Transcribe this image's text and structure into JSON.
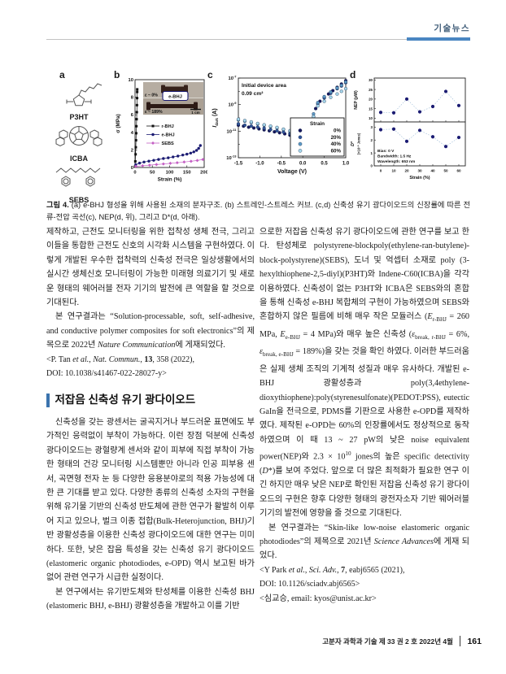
{
  "header": {
    "section_label": "기술뉴스"
  },
  "figure": {
    "panel_a": {
      "label": "a",
      "molecules": [
        "P3HT",
        "ICBA",
        "SEBS"
      ]
    },
    "caption_label": "그림 4.",
    "caption_text": "(a) e-BHJ 형성을 위해 사용된 소재의 분자구조. (b) 스트레인-스트레스 커브. (c,d) 신축성 유기 광다이오드의 신장률에 따른 전류-전압 곡선(c), NEP(d, 위), 그리고 D*(d, 아래)."
  },
  "chart_data": [
    {
      "id": "panel_b",
      "panel_label": "b",
      "type": "line",
      "xlabel": "Strain (%)",
      "ylabel": "σ (MPa)",
      "xlim": [
        0,
        200
      ],
      "ylim": [
        0,
        10
      ],
      "xticks": [
        0,
        50,
        100,
        150,
        200
      ],
      "yticks": [
        0,
        2,
        4,
        6,
        8,
        10
      ],
      "series": [
        {
          "name": "r-BHJ",
          "color": "#111111",
          "marker": "square",
          "points": [
            [
              0,
              0.1
            ],
            [
              0.8,
              0.7
            ],
            [
              1.6,
              1.5
            ],
            [
              2.2,
              2.3
            ],
            [
              2.8,
              3.1
            ],
            [
              3.4,
              3.9
            ],
            [
              4,
              4.7
            ],
            [
              4.6,
              5.5
            ],
            [
              5.2,
              6.3
            ],
            [
              5.6,
              7.1
            ],
            [
              6,
              7.9
            ],
            [
              6.2,
              8.6
            ],
            [
              6.3,
              8.9
            ]
          ]
        },
        {
          "name": "e-BHJ",
          "color": "#1b1b72",
          "marker": "circle",
          "points": [
            [
              2,
              0.32
            ],
            [
              13,
              0.5
            ],
            [
              26,
              0.62
            ],
            [
              40,
              0.72
            ],
            [
              54,
              0.82
            ],
            [
              68,
              0.92
            ],
            [
              82,
              1.02
            ],
            [
              96,
              1.1
            ],
            [
              110,
              1.2
            ],
            [
              124,
              1.3
            ],
            [
              138,
              1.42
            ],
            [
              150,
              1.52
            ],
            [
              161,
              1.64
            ],
            [
              170,
              1.78
            ],
            [
              178,
              1.95
            ],
            [
              184,
              2.18
            ],
            [
              189,
              2.5
            ]
          ]
        },
        {
          "name": "SEBS",
          "color": "#c45fc4",
          "marker": "diamond",
          "points": [
            [
              2,
              0.13
            ],
            [
              22,
              0.2
            ],
            [
              42,
              0.27
            ],
            [
              62,
              0.33
            ],
            [
              82,
              0.4
            ],
            [
              102,
              0.47
            ],
            [
              122,
              0.54
            ],
            [
              142,
              0.62
            ],
            [
              162,
              0.71
            ],
            [
              180,
              0.8
            ],
            [
              196,
              0.92
            ]
          ]
        }
      ],
      "inset": {
        "labels": [
          "ε ~ 0%",
          "ε ~ 189%"
        ],
        "badge": "e-BHJ",
        "scalebar": "1 cm"
      }
    },
    {
      "id": "panel_c",
      "panel_label": "c",
      "type": "scatter",
      "xlabel": "Voltage (V)",
      "ylabel_parts": [
        "I",
        "dark",
        " (A)"
      ],
      "xlim": [
        -1.5,
        1.0
      ],
      "ylim_log": [
        -13,
        -7
      ],
      "xticks": [
        "-1.5",
        "-1.0",
        "-0.5",
        "0.0",
        "0.5",
        "1.0"
      ],
      "ytick_exponents": [
        -7,
        -9,
        -11,
        -13
      ],
      "annotation": [
        "Initial device area",
        "0.09 cm²"
      ],
      "legend_title": "Strain",
      "series": [
        {
          "name": "0%",
          "color": "#16165e",
          "points": [
            [
              -1.5,
              -10.55
            ],
            [
              -1.38,
              -10.62
            ],
            [
              -1.26,
              -10.7
            ],
            [
              -1.14,
              -10.76
            ],
            [
              -1.02,
              -10.83
            ],
            [
              -0.9,
              -10.9
            ],
            [
              -0.78,
              -10.97
            ],
            [
              -0.66,
              -11.05
            ],
            [
              -0.54,
              -11.12
            ],
            [
              -0.42,
              -11.2
            ],
            [
              -0.3,
              -11.3
            ],
            [
              -0.18,
              -11.42
            ],
            [
              -0.06,
              -11.55
            ],
            [
              0.03,
              -12.1
            ],
            [
              0.07,
              -12.5
            ],
            [
              0.15,
              -11.4
            ],
            [
              0.22,
              -10.3
            ],
            [
              0.3,
              -9.3
            ],
            [
              0.4,
              -8.75
            ],
            [
              0.5,
              -8.45
            ],
            [
              0.6,
              -8.2
            ],
            [
              0.7,
              -7.95
            ],
            [
              0.8,
              -7.7
            ],
            [
              0.9,
              -7.45
            ],
            [
              1.0,
              -7.2
            ]
          ]
        },
        {
          "name": "20%",
          "color": "#30549a",
          "points": [
            [
              -1.5,
              -10.45
            ],
            [
              -1.35,
              -10.55
            ],
            [
              -1.2,
              -10.62
            ],
            [
              -1.05,
              -10.7
            ],
            [
              -0.9,
              -10.78
            ],
            [
              -0.75,
              -10.88
            ],
            [
              -0.6,
              -10.97
            ],
            [
              -0.45,
              -11.07
            ],
            [
              -0.3,
              -11.18
            ],
            [
              -0.15,
              -11.32
            ],
            [
              -0.03,
              -11.5
            ],
            [
              0.05,
              -12.2
            ],
            [
              0.15,
              -11.1
            ],
            [
              0.25,
              -9.9
            ],
            [
              0.35,
              -8.95
            ],
            [
              0.5,
              -8.5
            ],
            [
              0.65,
              -8.15
            ],
            [
              0.8,
              -7.8
            ],
            [
              0.9,
              -7.6
            ],
            [
              1.0,
              -7.35
            ]
          ]
        },
        {
          "name": "40%",
          "color": "#5d9bc8",
          "points": [
            [
              -1.5,
              -10.15
            ],
            [
              -1.35,
              -10.25
            ],
            [
              -1.2,
              -10.35
            ],
            [
              -1.05,
              -10.45
            ],
            [
              -0.9,
              -10.55
            ],
            [
              -0.75,
              -10.65
            ],
            [
              -0.6,
              -10.75
            ],
            [
              -0.45,
              -10.87
            ],
            [
              -0.3,
              -11.0
            ],
            [
              -0.15,
              -11.15
            ],
            [
              -0.03,
              -11.35
            ],
            [
              0.05,
              -11.9
            ],
            [
              0.15,
              -10.9
            ],
            [
              0.25,
              -9.7
            ],
            [
              0.35,
              -8.85
            ],
            [
              0.5,
              -8.4
            ],
            [
              0.65,
              -8.05
            ],
            [
              0.8,
              -7.75
            ],
            [
              0.9,
              -7.55
            ],
            [
              1.0,
              -7.3
            ]
          ]
        },
        {
          "name": "60%",
          "color": "#a6d7ec",
          "points": [
            [
              -1.5,
              -10.1
            ],
            [
              -1.35,
              -10.2
            ],
            [
              -1.2,
              -10.3
            ],
            [
              -1.05,
              -10.42
            ],
            [
              -0.9,
              -10.52
            ],
            [
              -0.75,
              -10.62
            ],
            [
              -0.6,
              -10.72
            ],
            [
              -0.45,
              -10.85
            ],
            [
              -0.3,
              -10.97
            ],
            [
              -0.15,
              -11.1
            ],
            [
              -0.03,
              -11.3
            ],
            [
              0.05,
              -11.75
            ],
            [
              0.15,
              -10.8
            ],
            [
              0.25,
              -9.9
            ],
            [
              0.35,
              -9.1
            ],
            [
              0.5,
              -8.75
            ],
            [
              0.65,
              -8.45
            ],
            [
              0.8,
              -8.2
            ],
            [
              0.9,
              -8.0
            ],
            [
              1.0,
              -7.8
            ]
          ]
        }
      ]
    },
    {
      "id": "panel_d",
      "panel_label": "d",
      "type": "scatter",
      "xlabel": "Strain (%)",
      "x": [
        0,
        10,
        20,
        30,
        40,
        50,
        60
      ],
      "xticks": [
        0,
        10,
        20,
        30,
        40,
        50,
        60
      ],
      "marker_color": "#1b1b72",
      "line_color": "#9dbcd8",
      "subplots": [
        {
          "ylabel": "NEP (pW)",
          "ylim": [
            8,
            31
          ],
          "yticks": [
            10,
            15,
            20,
            25,
            30
          ],
          "values": [
            13,
            12.8,
            20,
            13.3,
            16.1,
            24,
            16.6
          ]
        },
        {
          "ylabel_lines": [
            "D*",
            "(×10¹⁰ Jones)"
          ],
          "ylim": [
            0,
            3.4
          ],
          "yticks": [
            0,
            1,
            2,
            3
          ],
          "values": [
            2.8,
            2.85,
            1.9,
            2.75,
            2.25,
            1.5,
            2.2
          ]
        }
      ],
      "annotation": [
        "Bias: 0 V",
        "Bandwidth: 1.5 Hz",
        "Wavelength: 653 nm"
      ]
    }
  ],
  "article": {
    "section_heading": "저잡음 신축성 유기 광다이오드",
    "left": {
      "p1": [
        {
          "t": "제작하고, 근전도 모니터링을 위한 접착성 생체 전극, 그리고 이들을 통합한 근전도 신호의 시각화 시스템을 구현하였다. 이렇게 개발된 우수한 접착력의 신축성 전극은 일상생활에서의 실시간 생체신호 모니터링이 가능한 미래형 의료기기 및 새로운 형태의 웨어러블 전자 기기의 발전에 큰 역할을 할 것으로 기대된다."
        }
      ],
      "p2": [
        {
          "t": "본 연구결과는 “Solution-processable, soft, self-adhesive, and conductive polymer composites for soft electronics”의 제목으로 2022년 "
        },
        {
          "t": "Nature Communication",
          "i": true
        },
        {
          "t": "에 게재되었다."
        }
      ],
      "citation": [
        {
          "t": "<P. Tan "
        },
        {
          "t": "et al.",
          "i": true
        },
        {
          "t": ", "
        },
        {
          "t": "Nat. Commun.",
          "i": true
        },
        {
          "t": ", "
        },
        {
          "t": "13",
          "b": true
        },
        {
          "t": ", 358 (2022),\nDOI: 10.1038/s41467-022-28027-y>"
        }
      ],
      "p3": [
        {
          "t": "신축성을 갖는 광센서는 굴곡지거나 부드러운 표면에도 부가적인 응력없이 부착이 가능하다. 이런 장점 덕분에 신축성 광다이오드는 광혈량계 센서와 같이 피부에 직접 부착이 가능한 형태의 건강 모니터링 시스템뿐만 아니라 인공 피부용 센서, 곡면형 전자 눈 등 다양한 응용분야로의 적용 가능성에 대한 큰 기대를 받고 있다. 다양한 종류의 신축성 소자의 구현을 위해 유기물 기반의 신축성 반도체에 관한 연구가 활발히 이루어 지고 있으나, 벌크 이종 접합(Bulk-Heterojunction, BHJ)기반 광활성층을 이용한 신축성 광다이오드에 대한 연구는 미미하다. 또한, 낮은 잡음 특성을 갖는 신축성 유기 광다이오드 (elastomeric organic photodiodes, e-OPD) 역시 보고된 바가 없어 관련 연구가 시급한 실정이다."
        }
      ],
      "p4": [
        {
          "t": "본 연구에서는 유기반도체와 탄성체를 이용한 신축성 BHJ (elastomeric BHJ, e-BHJ) 광활성층을 개발하고 이를 기반"
        }
      ]
    },
    "right": {
      "p1": [
        {
          "t": "으로한 저잡음 신축성 유기 광다이오드에 관한 연구를 보고 한다. 탄성체로 polystyrene-blockpoly(ethylene-ran-butylene)-block-polystyrene)(SEBS), 도너 및 억셉터 소재로 poly (3-hexylthiophene-2,5-diyl)(P3HT)와 Indene-C60(ICBA)을 각각 이용하였다. 신축성이 없는 P3HT와 ICBA은 SEBS와의 혼합을 통해 신축성 e-BHJ 복합체의 구현이 가능하였으며 SEBS와 혼합하지 않은 필름에 비해 매우 작은 모듈러스 ("
        },
        {
          "t": "E",
          "i": true
        },
        {
          "t": "r-BHJ",
          "sub": true
        },
        {
          "t": " = 260 MPa, "
        },
        {
          "t": "E",
          "i": true
        },
        {
          "t": "e-BHJ",
          "sub": true
        },
        {
          "t": " = 4 MPa)와 매우 높은 신축성 ("
        },
        {
          "t": "ε",
          "i": true
        },
        {
          "t": "break, r-BHJ",
          "sub": true
        },
        {
          "t": " = 6%, "
        },
        {
          "t": "ε",
          "i": true
        },
        {
          "t": "break, e-BHJ",
          "sub": true
        },
        {
          "t": " = 189%)을 갖는 것을 확인 하였다. 이러한 부드러움은 실제 생체 조직의 기계적 성질과 매우 유사하다. 개발된 e-BHJ 광활성층과 poly(3,4ethylene-dioxythiophene):poly(styrenesulfonate)(PEDOT:PSS), eutectic GaIn을 전극으로, PDMS를 기판으로 사용한 e-OPD를 제작하였다. 제작된 e-OPD는 60%의 인장률에서도 정상적으로 동작하였으며 이 때 13 ~ 27 pW의 낮은 noise equivalent power(NEP)와 2.3 × 10"
        },
        {
          "t": "10",
          "sup": true
        },
        {
          "t": " jones의 높은 specific detectivity ("
        },
        {
          "t": "D",
          "i": true
        },
        {
          "t": "*)를 보여 주었다. 앞으로 더 많은 최적화가 필요한 연구 이긴 하지만 매우 낮은 NEP로 확인된 저잡음 신축성 유기 광다이오드의 구현은 향후 다양한 형태의 광전자소자 기반 웨어러블 기기의 발전에 영향을 줄 것으로 기대된다."
        }
      ],
      "p2": [
        {
          "t": "본 연구결과는 “Skin-like low-noise elastomeric organic photodiodes”의 제목으로 2021년 "
        },
        {
          "t": "Science Advances",
          "i": true
        },
        {
          "t": "에 게재 되었다."
        }
      ],
      "citation": [
        {
          "t": "<Y Park "
        },
        {
          "t": "et al.",
          "i": true
        },
        {
          "t": ", "
        },
        {
          "t": "Sci. Adv.",
          "i": true
        },
        {
          "t": ", "
        },
        {
          "t": "7",
          "b": true
        },
        {
          "t": ", eabj6565 (2021),\nDOI: 10.1126/sciadv.abj6565>"
        }
      ],
      "contact": [
        {
          "t": "<심교승, email: kyos@unist.ac.kr>"
        }
      ]
    }
  },
  "footer": {
    "journal_line": "고분자 과학과 기술 제 33 권 2 호 2022년 4월",
    "page_number": "161"
  }
}
